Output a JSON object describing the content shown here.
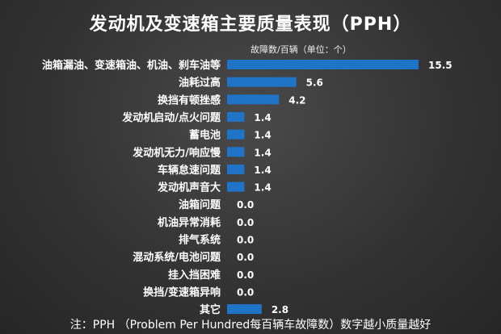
{
  "header": {
    "title": "发动机及变速箱主要质量表现（PPH）",
    "unit_note": "故障数/百辆（单位：个）"
  },
  "footer": {
    "note": "注：PPH （Problem Per Hundred每百辆车故障数）数字越小质量越好"
  },
  "colors": {
    "bar": "#1f74c8",
    "text": "#ffffff"
  },
  "chart_data": {
    "type": "bar",
    "orientation": "horizontal",
    "categories": [
      "油箱漏油、变速箱油、机油、刹车油等",
      "油耗过高",
      "换挡有顿挫感",
      "发动机启动/点火问题",
      "蓄电池",
      "发动机无力/响应慢",
      "车辆怠速问题",
      "发动机声音大",
      "油箱问题",
      "机油异常消耗",
      "排气系统",
      "混动系统/电池问题",
      "挂入挡困难",
      "换挡/变速箱异响",
      "其它"
    ],
    "values": [
      15.5,
      5.6,
      4.2,
      1.4,
      1.4,
      1.4,
      1.4,
      1.4,
      0.0,
      0.0,
      0.0,
      0.0,
      0.0,
      0.0,
      2.8
    ],
    "value_labels": [
      "15.5",
      "5.6",
      "4.2",
      "1.4",
      "1.4",
      "1.4",
      "1.4",
      "1.4",
      "0.0",
      "0.0",
      "0.0",
      "0.0",
      "0.0",
      "0.0",
      "2.8"
    ],
    "xlim": [
      0,
      15.5
    ],
    "grid": false,
    "legend": "none"
  }
}
